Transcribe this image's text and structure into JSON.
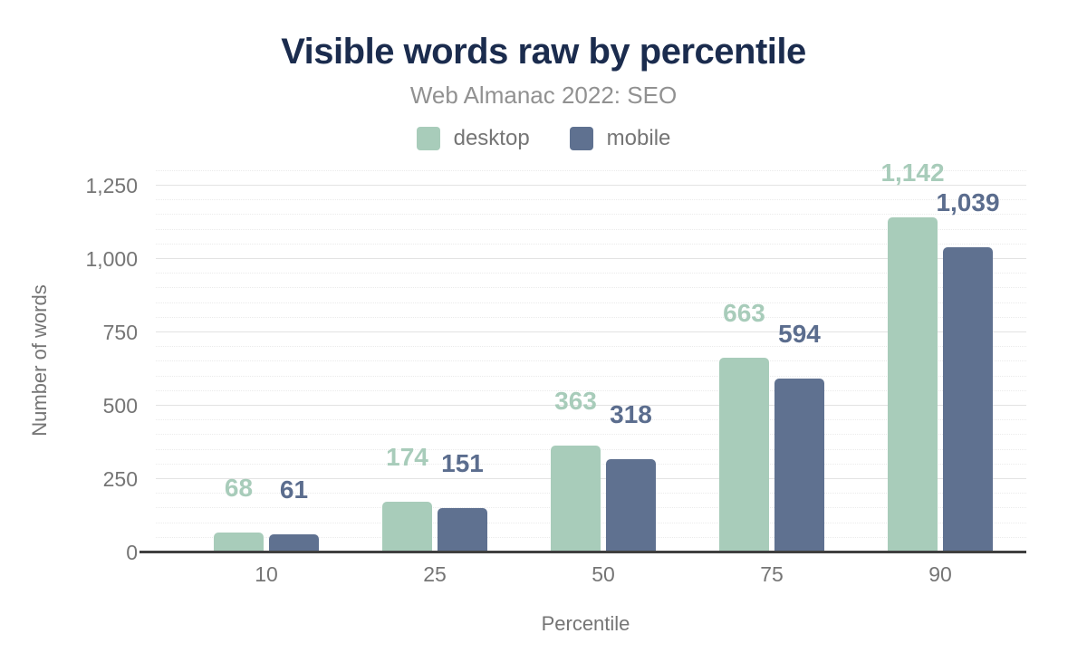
{
  "chart_data": {
    "type": "bar",
    "title": "Visible words raw by percentile",
    "subtitle": "Web Almanac 2022: SEO",
    "xlabel": "Percentile",
    "ylabel": "Number of words",
    "categories": [
      "10",
      "25",
      "50",
      "75",
      "90"
    ],
    "series": [
      {
        "name": "desktop",
        "color": "#a8ccba",
        "label_color": "#a8ccba",
        "values": [
          68,
          174,
          363,
          663,
          1142
        ],
        "labels": [
          "68",
          "174",
          "363",
          "663",
          "1,142"
        ]
      },
      {
        "name": "mobile",
        "color": "#5f7190",
        "label_color": "#5b6d8e",
        "values": [
          61,
          151,
          318,
          594,
          1039
        ],
        "labels": [
          "61",
          "151",
          "318",
          "594",
          "1,039"
        ]
      }
    ],
    "ylim": [
      0,
      1250
    ],
    "yticks": [
      {
        "value": 0,
        "label": "0"
      },
      {
        "value": 250,
        "label": "250"
      },
      {
        "value": 500,
        "label": "500"
      },
      {
        "value": 750,
        "label": "750"
      },
      {
        "value": 1000,
        "label": "1,000"
      },
      {
        "value": 1250,
        "label": "1,250"
      }
    ],
    "minor_grid_step": 50,
    "minor_grid_max": 1300,
    "grid": true,
    "legend_position": "top"
  },
  "colors": {
    "title": "#1b2c4e",
    "subtitle": "#919191",
    "axis_text": "#757575",
    "grid_major": "#e3e3e3",
    "grid_minor": "#ebebeb",
    "axis_line": "#3f3f3f"
  }
}
